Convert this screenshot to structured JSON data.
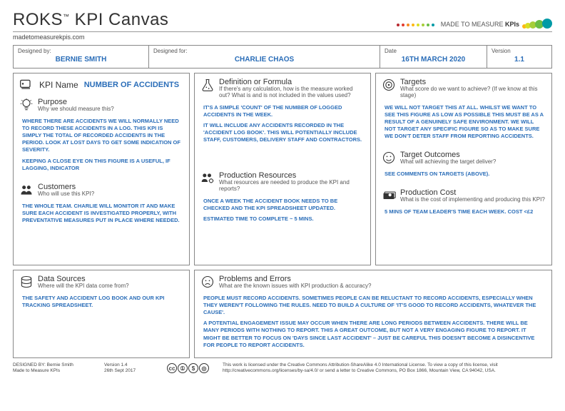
{
  "colors": {
    "accent": "#2a6db8",
    "border": "#888888",
    "text": "#333333",
    "muted": "#555555",
    "logo_dots": [
      "#b8292f",
      "#e23b2e",
      "#f58b1f",
      "#fdb813",
      "#d7df23",
      "#a6ce39",
      "#6abd45",
      "#009aa6"
    ]
  },
  "header": {
    "title_main": "ROKS",
    "title_tm": "™",
    "title_rest": " KPI Canvas",
    "subtitle": "madetomeasurekpis.com",
    "brand_text_1": "MADE TO MEASURE ",
    "brand_text_2": "KPIs"
  },
  "meta": {
    "designed_by_label": "Designed by:",
    "designed_by": "Bernie Smith",
    "designed_for_label": "Designed for:",
    "designed_for": "Charlie Chaos",
    "date_label": "Date",
    "date": "16th March 2020",
    "version_label": "Version",
    "version": "1.1"
  },
  "sections": {
    "kpi_name": {
      "label": "KPI Name",
      "value": "Number of Accidents"
    },
    "purpose": {
      "title": "Purpose",
      "sub": "Why we should measure this?",
      "body1": "Where there are accidents we will normally need to record these accidents in a log. This KPI is simply the total of recorded accidents in the period. Look at lost days to get some indication of severity.",
      "body2": "Keeping a close eye on this figure is a useful, if lagging, indicator"
    },
    "customers": {
      "title": "Customers",
      "sub": "Who will use this KPI?",
      "body1": "The whole team. Charlie will monitor it and make sure each accident is investigated properly, with preventative measures put in place where needed."
    },
    "definition": {
      "title": "Definition or Formula",
      "sub": "If there's any calculation, how is the measure worked out? What is and is not included in the values used?",
      "body1": "It's a simple 'count' of the number of logged accidents in the week.",
      "body2": "It will include any accidents recorded in the 'accident log book'. This will potentially include staff, customers, delivery staff and contractors."
    },
    "resources": {
      "title": "Production Resources",
      "sub": "What resources are needed to produce the KPI and reports?",
      "body1": "Once a week the accident book needs to be checked and the KPI spreadsheet updated.",
      "body2": "Estimated time to complete ~ 5 mins."
    },
    "targets": {
      "title": "Targets",
      "sub": "What score do we want to achieve? (If we know at this stage)",
      "body1": "We will not target this at all. Whilst we want to see this figure as low as possible this must be as a result of a genuinely safe environment. We will not target any specific figure so as to make sure we don't deter staff from reporting accidents."
    },
    "outcomes": {
      "title": "Target Outcomes",
      "sub": "What will achieving the target deliver?",
      "body1": "See comments on targets (above)."
    },
    "cost": {
      "title": "Production Cost",
      "sub": "What is the cost of implementing and producing this KPI?",
      "body1": "5 mins of team leader's time each week. Cost <£2"
    },
    "datasources": {
      "title": "Data Sources",
      "sub": "Where will the KPI data come from?",
      "body1": "The safety and accident log book and our KPI tracking spreadsheet."
    },
    "problems": {
      "title": "Problems and Errors",
      "sub": "What are the known issues with KPI production & accuracy?",
      "body1": "People must record accidents. Sometimes people can be reluctant to record accidents, especially when they weren't following the rules. Need to build a culture of 'it's good to record accidents, whatever the cause'.",
      "body2": "A potential engagement issue may occur when there are long periods between accidents. There will be many periods with nothing to report. This a great outcome, but not a very engaging figure to report. It might be better to focus on 'days since last accident' – just be careful this doesn't become a disincentive for people to report accidents."
    }
  },
  "footer": {
    "designed_by": "DESIGNED BY: Bernie Smith",
    "company": "Made to Measure KPIs",
    "version": "Version 1.4",
    "date": "26th Sept 2017",
    "license": "This work is licensed under the Creative Commons Attribution-ShareAlike 4.0 International License. To view a copy of this license, visit http://creativecommons.org/licenses/by-sa/4.0/ or send a letter to Creative Commons, PO Box 1866, Mountain View, CA 94042, USA."
  }
}
